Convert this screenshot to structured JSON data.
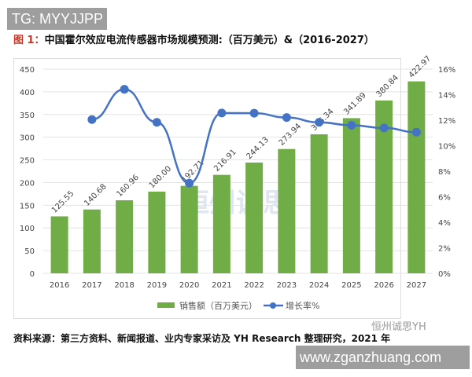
{
  "watermark_top": "TG: MYYJJPP",
  "title": {
    "prefix": "图 1：",
    "text": "中国霍尔效应电流传感器市场规模预测:（百万美元）&（2016-2027）"
  },
  "chart_data": {
    "type": "bar+line",
    "categories": [
      "2016",
      "2017",
      "2018",
      "2019",
      "2020",
      "2021",
      "2022",
      "2023",
      "2024",
      "2025",
      "2026",
      "2027"
    ],
    "series": [
      {
        "name": "销售额（百万美元）",
        "type": "bar",
        "axis": "left",
        "color": "#70ad47",
        "values": [
          125.55,
          140.68,
          160.96,
          180.0,
          192.71,
          216.91,
          244.13,
          273.94,
          306.34,
          341.89,
          380.84,
          422.97
        ],
        "labels": [
          "125.55",
          "140.68",
          "160.96",
          "180.00",
          "192.71",
          "216.91",
          "244.13",
          "273.94",
          "306.34",
          "341.89",
          "380.84",
          "422.97"
        ]
      },
      {
        "name": "增长率%",
        "type": "line",
        "axis": "right",
        "color": "#4472c4",
        "values": [
          null,
          12.05,
          14.42,
          11.83,
          7.06,
          12.56,
          12.55,
          12.21,
          11.83,
          11.6,
          11.39,
          11.06
        ]
      }
    ],
    "y_left": {
      "range": [
        0,
        450
      ],
      "ticks": [
        "0",
        "50",
        "100",
        "150",
        "200",
        "250",
        "300",
        "350",
        "400",
        "450"
      ]
    },
    "y_right": {
      "range": [
        0,
        16
      ],
      "ticks": [
        "0%",
        "2%",
        "4%",
        "6%",
        "8%",
        "10%",
        "12%",
        "14%",
        "16%"
      ]
    },
    "grid": true,
    "legend_placement": "bottom"
  },
  "source": "资料来源：第三方资料、新闻报道、业内专家采访及 YH Research 整理研究，2021 年",
  "wechat_watermark": "恒州诚思YH",
  "center_watermark": "恒州诚思",
  "watermark_bottom": "www.zganzhuang.com"
}
